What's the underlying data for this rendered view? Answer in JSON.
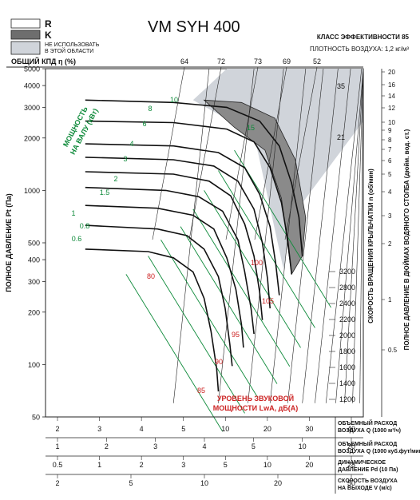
{
  "chart_data": {
    "type": "line",
    "title": "VM SYH 400",
    "efficiency_class": "КЛАСС ЭФФЕКТИВНОСТИ 85",
    "air_density": "ПЛОТНОСТЬ ВОЗДУХА: 1,2 кг/м³",
    "legend": [
      {
        "key": "R",
        "label": "R",
        "color": "#ffffff"
      },
      {
        "key": "K",
        "label": "K",
        "color": "#6e6e6e"
      },
      {
        "key": "no",
        "label": "НЕ ИСПОЛЬЗОВАТЬ В ЭТОЙ ОБЛАСТИ",
        "color": "#d0d4da"
      }
    ],
    "top_axis_label": "ОБЩИЙ КПД η (%)",
    "efficiency_ticks": [
      "64",
      "72",
      "73",
      "69",
      "52"
    ],
    "ylabel_left": "ПОЛНОЕ ДАВЛЕНИЕ Pt (Па)",
    "y_ticks_left": [
      "5000",
      "4000",
      "3000",
      "2000",
      "1000",
      "500",
      "400",
      "300",
      "200",
      "100",
      "50"
    ],
    "ylim": [
      50,
      5000
    ],
    "ylabel_right1": "СКОРОСТЬ ВРАЩЕНИЯ КРЫЛЬЧАТКИ n (об/мин)",
    "rpm_ticks": [
      "3200",
      "2800",
      "2400",
      "2200",
      "2000",
      "1800",
      "1600",
      "1400",
      "1200"
    ],
    "ylabel_right2": "ПОЛНОЕ ДАВЛЕНИЕ В ДЮЙМАХ ВОДЯНОГО СТОЛБА (дюйм. вод. ст.)",
    "inwg_ticks": [
      "20",
      "16",
      "14",
      "12",
      "10",
      "9",
      "8",
      "7",
      "6",
      "5",
      "4",
      "3",
      "2",
      "1",
      "0.5"
    ],
    "power_label_1": "МОЩНОСТЬ",
    "power_label_2": "НА ВАЛУ (кВт)",
    "power_values": [
      "10",
      "8",
      "6",
      "4",
      "3",
      "2",
      "1.5",
      "1",
      "0.8",
      "0.6"
    ],
    "power_right_values": [
      "35",
      "21"
    ],
    "power_mid_value": "15",
    "sound_label_1": "УРОВЕНЬ ЗВУКОВОЙ",
    "sound_label_2": "МОЩНОСТИ LwA, дБ(А)",
    "sound_values": [
      "80",
      "85",
      "90",
      "95",
      "100",
      "105"
    ],
    "x_scales": [
      {
        "label_1": "ОБЪЕМНЫЙ РАСХОД",
        "label_2": "ВОЗДУХА Q (1000 м³/ч)",
        "ticks": [
          "2",
          "3",
          "4",
          "5",
          "10",
          "20",
          "30",
          "40"
        ]
      },
      {
        "label_1": "ОБЪЕМНЫЙ РАСХОД",
        "label_2": "ВОЗДУХА Q (1000 куб.фут/мин)",
        "ticks": [
          "1",
          "2",
          "3",
          "4",
          "5",
          "10",
          "20"
        ]
      },
      {
        "label_1": "ДИНАМИЧЕСКОЕ",
        "label_2": "ДАВЛЕНИЕ Pd (10 Па)",
        "ticks": [
          "0.5",
          "1",
          "2",
          "3",
          "5",
          "10",
          "20",
          "28"
        ]
      },
      {
        "label_1": "СКОРОСТЬ ВОЗДУХА",
        "label_2": "НА ВЫХОДЕ V (м/с)",
        "ticks": [
          "2",
          "5",
          "10",
          "20",
          "50"
        ]
      }
    ],
    "xlim": [
      1.4,
      52
    ],
    "series": [
      {
        "rpm": 3200,
        "points": [
          [
            2.2,
            3300
          ],
          [
            6,
            3200
          ],
          [
            11,
            3000
          ],
          [
            16,
            2500
          ],
          [
            20,
            1800
          ],
          [
            23,
            1100
          ],
          [
            25,
            700
          ],
          [
            26,
            420
          ]
        ]
      },
      {
        "rpm": 2800,
        "points": [
          [
            2.2,
            2500
          ],
          [
            6,
            2450
          ],
          [
            11,
            2250
          ],
          [
            15,
            1900
          ],
          [
            18,
            1350
          ],
          [
            20.5,
            850
          ],
          [
            22,
            520
          ],
          [
            23,
            330
          ]
        ]
      },
      {
        "rpm": 2400,
        "points": [
          [
            2.2,
            1850
          ],
          [
            6,
            1800
          ],
          [
            10,
            1650
          ],
          [
            13.5,
            1350
          ],
          [
            16,
            950
          ],
          [
            18,
            620
          ],
          [
            19.2,
            380
          ],
          [
            20,
            250
          ]
        ]
      },
      {
        "rpm": 2200,
        "points": [
          [
            2.2,
            1550
          ],
          [
            6,
            1500
          ],
          [
            9.5,
            1380
          ],
          [
            12.5,
            1130
          ],
          [
            15,
            780
          ],
          [
            16.5,
            500
          ],
          [
            17.5,
            310
          ],
          [
            18,
            210
          ]
        ]
      },
      {
        "rpm": 2000,
        "points": [
          [
            2.2,
            1280
          ],
          [
            6,
            1240
          ],
          [
            9,
            1130
          ],
          [
            11.5,
            930
          ],
          [
            13.5,
            640
          ],
          [
            15,
            420
          ],
          [
            16,
            260
          ],
          [
            16.5,
            180
          ]
        ]
      },
      {
        "rpm": 1800,
        "points": [
          [
            2.2,
            1040
          ],
          [
            5.5,
            1000
          ],
          [
            8,
            920
          ],
          [
            10.5,
            760
          ],
          [
            12.5,
            520
          ],
          [
            13.5,
            340
          ],
          [
            14.5,
            210
          ],
          [
            15,
            150
          ]
        ]
      },
      {
        "rpm": 1600,
        "points": [
          [
            2.2,
            820
          ],
          [
            5,
            790
          ],
          [
            7.5,
            720
          ],
          [
            9.5,
            600
          ],
          [
            11,
            410
          ],
          [
            12.2,
            270
          ],
          [
            13,
            170
          ],
          [
            13.3,
            125
          ]
        ]
      },
      {
        "rpm": 1400,
        "points": [
          [
            2.2,
            630
          ],
          [
            5,
            600
          ],
          [
            7,
            550
          ],
          [
            8.5,
            460
          ],
          [
            10,
            320
          ],
          [
            10.8,
            210
          ],
          [
            11.4,
            130
          ],
          [
            11.7,
            98
          ]
        ]
      },
      {
        "rpm": 1200,
        "points": [
          [
            2.2,
            460
          ],
          [
            4.5,
            445
          ],
          [
            6,
            410
          ],
          [
            7.5,
            340
          ],
          [
            8.5,
            240
          ],
          [
            9.2,
            155
          ],
          [
            9.8,
            95
          ],
          [
            10,
            70
          ]
        ]
      }
    ]
  }
}
